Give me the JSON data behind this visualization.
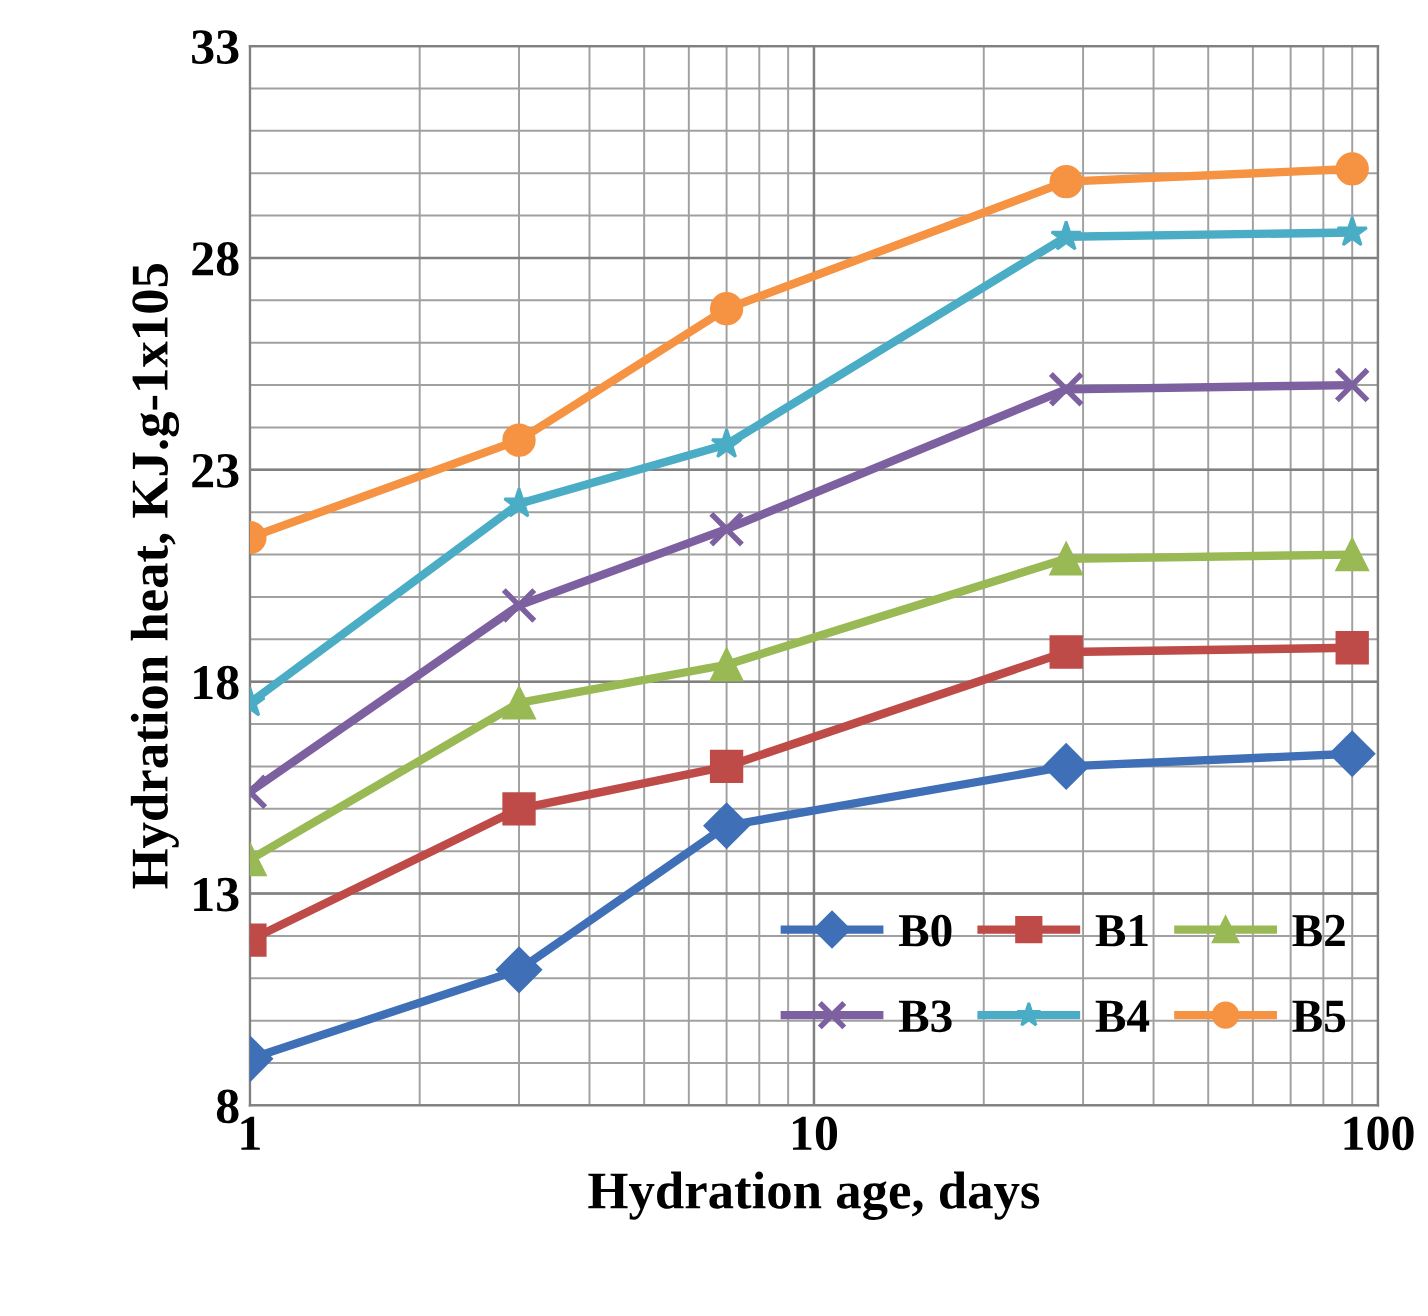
{
  "chart_data": {
    "type": "line",
    "xlabel": "Hydration age, days",
    "ylabel": "Hydration heat, KJ.g-1x105",
    "x": [
      1,
      3,
      7,
      28,
      90
    ],
    "series": [
      {
        "name": "B0",
        "color": "#3f6fb6",
        "marker": "diamond",
        "values": [
          9.1,
          11.2,
          14.6,
          16.0,
          16.3
        ]
      },
      {
        "name": "B1",
        "color": "#be4b48",
        "marker": "square",
        "values": [
          11.9,
          15.0,
          16.0,
          18.7,
          18.8
        ]
      },
      {
        "name": "B2",
        "color": "#98b954",
        "marker": "triangle",
        "values": [
          13.8,
          17.5,
          18.4,
          20.9,
          21.0
        ]
      },
      {
        "name": "B3",
        "color": "#7d60a0",
        "marker": "cross",
        "values": [
          15.4,
          19.8,
          21.6,
          24.9,
          25.0
        ]
      },
      {
        "name": "B4",
        "color": "#4aacc5",
        "marker": "star",
        "values": [
          17.5,
          22.2,
          23.6,
          28.5,
          28.6
        ]
      },
      {
        "name": "B5",
        "color": "#f59343",
        "marker": "circle",
        "values": [
          21.4,
          23.7,
          26.8,
          29.8,
          30.1
        ]
      }
    ],
    "log": "x",
    "xlim": [
      1,
      100
    ],
    "xticks": [
      1,
      10,
      100
    ],
    "ylim": [
      8,
      33
    ],
    "yticks": [
      8,
      13,
      18,
      23,
      28,
      33
    ],
    "grid": true,
    "legend": "bottom right"
  }
}
